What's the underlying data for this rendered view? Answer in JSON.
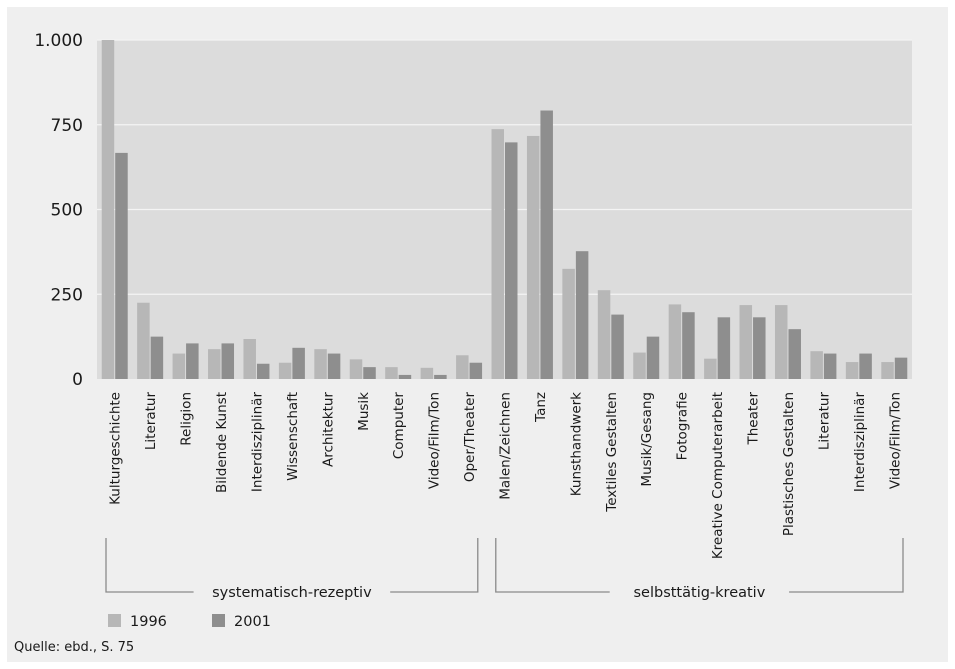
{
  "chart_data": {
    "type": "bar",
    "categories": [
      "Kulturgeschichte",
      "Literatur",
      "Religion",
      "Bildende Kunst",
      "Interdisziplinär",
      "Wissenschaft",
      "Architektur",
      "Musik",
      "Computer",
      "Video/Film/Ton",
      "Oper/Theater",
      "Malen/Zeichnen",
      "Tanz",
      "Kunsthandwerk",
      "Textiles Gestalten",
      "Musik/Gesang",
      "Fotografie",
      "Kreative Computerarbeit",
      "Theater",
      "Plastisches Gestalten",
      "Literatur",
      "Interdisziplinär",
      "Video/Film/Ton"
    ],
    "series": [
      {
        "name": "1996",
        "color": "#b7b7b7",
        "values": [
          1000,
          225,
          75,
          88,
          118,
          48,
          88,
          58,
          35,
          33,
          70,
          737,
          717,
          325,
          262,
          78,
          220,
          60,
          218,
          218,
          82,
          50,
          50
        ]
      },
      {
        "name": "2001",
        "color": "#8e8e8e",
        "values": [
          667,
          125,
          105,
          105,
          45,
          92,
          75,
          35,
          12,
          12,
          48,
          698,
          792,
          377,
          190,
          125,
          197,
          182,
          182,
          147,
          75,
          75,
          63
        ]
      }
    ],
    "ylim": [
      0,
      1000
    ],
    "yticks": [
      0,
      250,
      500,
      750,
      1000
    ],
    "ytick_labels": [
      "0",
      "250",
      "500",
      "750",
      "1.000"
    ],
    "grid": true,
    "groups": [
      {
        "label": "systematisch-rezeptiv",
        "start": 0,
        "end": 10
      },
      {
        "label": "selbsttätig-kreativ",
        "start": 11,
        "end": 22
      }
    ],
    "legend_position": "bottom-left",
    "source": "Quelle: ebd., S. 75"
  }
}
